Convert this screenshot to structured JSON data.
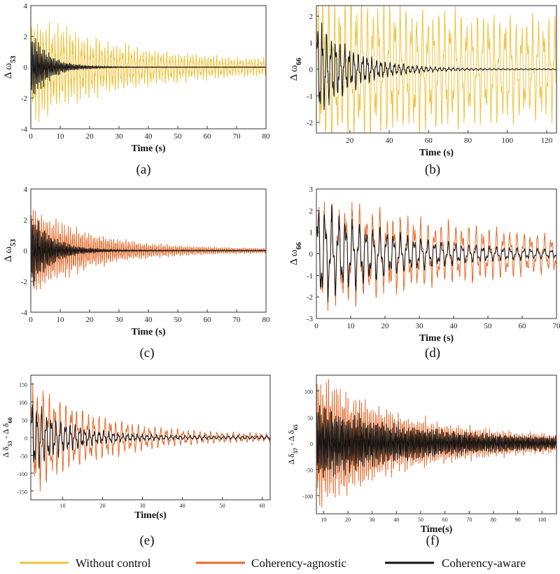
{
  "colors": {
    "without_control": "#f0c23c",
    "coherency_agnostic": "#e46a2b",
    "coherency_aware": "#111111"
  },
  "legend": [
    {
      "name": "Without control",
      "color": "#f0c23c"
    },
    {
      "name": "Coherency-agnostic",
      "color": "#e46a2b"
    },
    {
      "name": "Coherency-aware",
      "color": "#111111"
    }
  ],
  "chart_data": [
    {
      "id": "a",
      "caption": "(a)",
      "type": "line",
      "title": "",
      "xlabel": "Time (s)",
      "ylabel": {
        "main": "Δ ω",
        "sub": "53"
      },
      "xlim": [
        0,
        80
      ],
      "ylim": [
        -4,
        4
      ],
      "xticks": [
        0,
        10,
        20,
        30,
        40,
        50,
        60,
        70,
        80
      ],
      "yticks": [
        -4,
        -2,
        0,
        2,
        4
      ],
      "series": [
        {
          "name": "Without control",
          "color": "#f0c23c",
          "amplitude": 3.4,
          "decay_time": 30,
          "osc_period": 1.0,
          "floor": 0.35
        },
        {
          "name": "Coherency-aware",
          "color": "#111111",
          "amplitude": 2.6,
          "decay_time": 6,
          "osc_period": 0.5,
          "floor": 0.02
        }
      ]
    },
    {
      "id": "b",
      "caption": "(b)",
      "type": "line",
      "title": "",
      "xlabel": "Time (s)",
      "ylabel": {
        "main": "Δ ω",
        "sub": "66"
      },
      "xlim": [
        3,
        125
      ],
      "ylim": [
        -2.4,
        2.4
      ],
      "xticks": [
        20,
        40,
        60,
        80,
        100,
        120
      ],
      "yticks": [
        -2,
        -1,
        0,
        1,
        2
      ],
      "series": [
        {
          "name": "Without control",
          "color": "#f0c23c",
          "amplitude": 2.4,
          "decay_time": 200,
          "osc_period": 2.8,
          "floor": 0.6
        },
        {
          "name": "Coherency-aware",
          "color": "#111111",
          "amplitude": 2.2,
          "decay_time": 18,
          "osc_period": 2.3,
          "floor": 0.02
        }
      ]
    },
    {
      "id": "c",
      "caption": "(c)",
      "type": "line",
      "title": "",
      "xlabel": "Time (s)",
      "ylabel": {
        "main": "Δ ω",
        "sub": "53"
      },
      "xlim": [
        0,
        80
      ],
      "ylim": [
        -4,
        4
      ],
      "xticks": [
        0,
        10,
        20,
        30,
        40,
        50,
        60,
        70,
        80
      ],
      "yticks": [
        -4,
        -2,
        0,
        2,
        4
      ],
      "series": [
        {
          "name": "Coherency-agnostic",
          "color": "#e46a2b",
          "amplitude": 3.0,
          "decay_time": 20,
          "osc_period": 0.7,
          "floor": 0.12
        },
        {
          "name": "Coherency-aware",
          "color": "#111111",
          "amplitude": 2.8,
          "decay_time": 7,
          "osc_period": 0.5,
          "floor": 0.03
        }
      ]
    },
    {
      "id": "d",
      "caption": "(d)",
      "type": "line",
      "title": "",
      "xlabel": "Time (s)",
      "ylabel": {
        "main": "Δ ω",
        "sub": "66"
      },
      "xlim": [
        0,
        70
      ],
      "ylim": [
        -3,
        3
      ],
      "xticks": [
        0,
        10,
        20,
        30,
        40,
        50,
        60,
        70
      ],
      "yticks": [
        -3,
        -2,
        -1,
        0,
        1,
        2,
        3
      ],
      "series": [
        {
          "name": "Coherency-agnostic",
          "color": "#e46a2b",
          "amplitude": 2.6,
          "decay_time": 55,
          "osc_period": 2.0,
          "floor": 0.2
        },
        {
          "name": "Coherency-aware",
          "color": "#111111",
          "amplitude": 2.5,
          "decay_time": 22,
          "osc_period": 2.0,
          "floor": 0.12
        }
      ]
    },
    {
      "id": "e",
      "caption": "(e)",
      "type": "line",
      "title": "",
      "xlabel": "Time(s)",
      "ylabel": {
        "main": "Δ δ",
        "sub": "53",
        "mid": " - Δ δ",
        "sub2": "60"
      },
      "xlim": [
        2,
        62
      ],
      "ylim": [
        -175,
        175
      ],
      "xticks": [
        10,
        20,
        30,
        40,
        50,
        60
      ],
      "yticks": [
        -150,
        -100,
        -50,
        0,
        50,
        100,
        150
      ],
      "series": [
        {
          "name": "Coherency-agnostic",
          "color": "#e46a2b",
          "amplitude": 170,
          "decay_time": 16,
          "osc_period": 1.4,
          "floor": 8
        },
        {
          "name": "Coherency-aware",
          "color": "#111111",
          "amplitude": 110,
          "decay_time": 9,
          "osc_period": 1.2,
          "floor": 5
        }
      ]
    },
    {
      "id": "f",
      "caption": "(f)",
      "type": "line",
      "title": "",
      "xlabel": "Time(s)",
      "ylabel": {
        "main": "Δ δ",
        "sub": "57",
        "mid": " - Δ δ",
        "sub2": "65"
      },
      "xlim": [
        7,
        106
      ],
      "ylim": [
        -135,
        130
      ],
      "xticks": [
        10,
        20,
        30,
        40,
        50,
        60,
        70,
        80,
        90,
        100
      ],
      "yticks": [
        -100,
        -50,
        0,
        50,
        100
      ],
      "series": [
        {
          "name": "Coherency-agnostic",
          "color": "#e46a2b",
          "amplitude": 130,
          "decay_time": 35,
          "osc_period": 0.8,
          "floor": 12
        },
        {
          "name": "Coherency-aware",
          "color": "#111111",
          "amplitude": 70,
          "decay_time": 40,
          "osc_period": 0.6,
          "floor": 8
        }
      ]
    }
  ]
}
